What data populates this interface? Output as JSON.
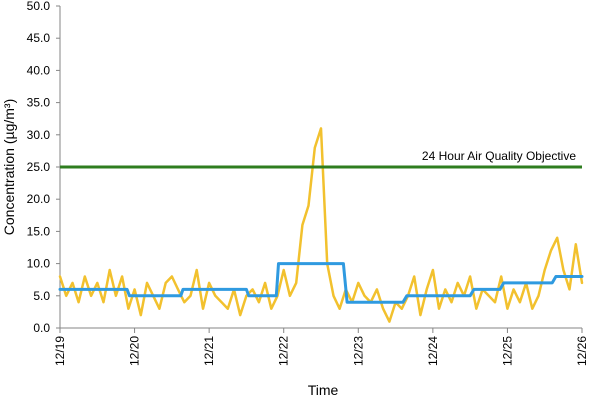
{
  "chart_data": {
    "type": "line",
    "title": "",
    "xlabel": "Time",
    "ylabel": "Concentration (µg/m³)",
    "ylim": [
      0,
      50
    ],
    "y_ticks": [
      "0.0",
      "5.0",
      "10.0",
      "15.0",
      "20.0",
      "25.0",
      "30.0",
      "35.0",
      "40.0",
      "45.0",
      "50.0"
    ],
    "x_ticks": [
      "12/19",
      "12/20",
      "12/21",
      "12/22",
      "12/23",
      "12/24",
      "12/25",
      "12/26"
    ],
    "grid": false,
    "legend": "none",
    "colors": {
      "hourly": "#F2C12E",
      "daily": "#2F9AE0",
      "objective": "#2E7D1F"
    },
    "objective": {
      "value": 25,
      "label": "24 Hour Air Quality Objective"
    },
    "series": [
      {
        "style": "hourly",
        "x": [
          0,
          0.083,
          0.167,
          0.25,
          0.333,
          0.417,
          0.5,
          0.583,
          0.667,
          0.75,
          0.833,
          0.917,
          1,
          1.083,
          1.167,
          1.25,
          1.333,
          1.417,
          1.5,
          1.583,
          1.667,
          1.75,
          1.833,
          1.917,
          2,
          2.083,
          2.167,
          2.25,
          2.333,
          2.417,
          2.5,
          2.583,
          2.667,
          2.75,
          2.833,
          2.917,
          3,
          3.083,
          3.167,
          3.25,
          3.333,
          3.417,
          3.5,
          3.583,
          3.667,
          3.75,
          3.833,
          3.917,
          4,
          4.083,
          4.167,
          4.25,
          4.333,
          4.417,
          4.5,
          4.583,
          4.667,
          4.75,
          4.833,
          4.917,
          5,
          5.083,
          5.167,
          5.25,
          5.333,
          5.417,
          5.5,
          5.583,
          5.667,
          5.75,
          5.833,
          5.917,
          6,
          6.083,
          6.167,
          6.25,
          6.333,
          6.417,
          6.5,
          6.583,
          6.667,
          6.75,
          6.833,
          6.917,
          7
        ],
        "y": [
          8,
          5,
          7,
          4,
          8,
          5,
          7,
          4,
          9,
          5,
          8,
          3,
          6,
          2,
          7,
          5,
          3,
          7,
          8,
          6,
          4,
          5,
          9,
          3,
          7,
          5,
          4,
          3,
          6,
          2,
          5,
          6,
          4,
          7,
          3,
          5,
          9,
          5,
          7,
          16,
          19,
          28,
          31,
          10,
          5,
          3,
          6,
          4,
          7,
          5,
          4,
          6,
          3,
          1,
          4,
          3,
          5,
          8,
          2,
          6,
          9,
          3,
          6,
          4,
          7,
          5,
          8,
          3,
          6,
          5,
          4,
          8,
          3,
          6,
          4,
          7,
          3,
          5,
          9,
          12,
          14,
          9,
          6,
          13,
          7
        ]
      },
      {
        "style": "daily",
        "x": [
          0,
          0.15,
          0.18,
          0.9,
          0.93,
          1.62,
          1.65,
          2.5,
          2.53,
          2.9,
          2.93,
          3.5,
          3.55,
          3.8,
          3.85,
          4.6,
          4.65,
          5.5,
          5.55,
          5.9,
          5.95,
          6.2,
          6.25,
          6.6,
          6.65,
          7
        ],
        "y": [
          6,
          6,
          6,
          6,
          5,
          5,
          6,
          6,
          5,
          5,
          10,
          10,
          10,
          10,
          4,
          4,
          5,
          5,
          6,
          6,
          7,
          7,
          7,
          7,
          8,
          8
        ]
      }
    ]
  }
}
